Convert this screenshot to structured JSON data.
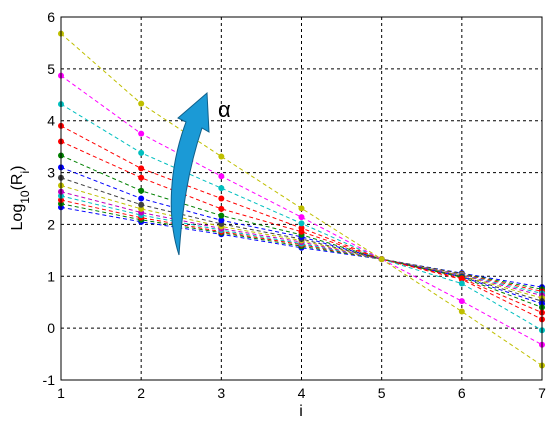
{
  "chart_data": {
    "type": "line",
    "title": "",
    "xlabel": "i",
    "ylabel": {
      "base": "Log",
      "sub1": "10",
      "open": "(R",
      "sub2": "i",
      "close": ")"
    },
    "xlim": [
      1,
      7
    ],
    "ylim": [
      -1,
      6
    ],
    "xticks": [
      "1",
      "2",
      "3",
      "4",
      "5",
      "6",
      "7"
    ],
    "yticks": [
      "-1",
      "0",
      "1",
      "2",
      "3",
      "4",
      "5",
      "6"
    ],
    "grid": true,
    "line_style": "dashed",
    "x": [
      1,
      2,
      3,
      4,
      5,
      6,
      7
    ],
    "series": [
      {
        "color": "#0000ff",
        "values": [
          2.33,
          2.05,
          1.81,
          1.55,
          1.33,
          1.06,
          0.79
        ]
      },
      {
        "color": "#008000",
        "values": [
          2.4,
          2.09,
          1.84,
          1.58,
          1.33,
          1.05,
          0.75
        ]
      },
      {
        "color": "#ff0000",
        "values": [
          2.47,
          2.13,
          1.86,
          1.61,
          1.33,
          1.04,
          0.71
        ]
      },
      {
        "color": "#00bfbf",
        "values": [
          2.55,
          2.18,
          1.89,
          1.63,
          1.33,
          1.03,
          0.67
        ]
      },
      {
        "color": "#bf00bf",
        "values": [
          2.63,
          2.23,
          1.92,
          1.66,
          1.33,
          1.02,
          0.63
        ]
      },
      {
        "color": "#bfbf00",
        "values": [
          2.75,
          2.3,
          1.96,
          1.69,
          1.33,
          1.01,
          0.58
        ]
      },
      {
        "color": "#404040",
        "values": [
          2.9,
          2.38,
          2.01,
          1.72,
          1.33,
          1.0,
          0.52
        ]
      },
      {
        "color": "#0000ff",
        "values": [
          3.1,
          2.5,
          2.08,
          1.76,
          1.33,
          0.99,
          0.47
        ]
      },
      {
        "color": "#008000",
        "values": [
          3.33,
          2.65,
          2.17,
          1.8,
          1.33,
          0.98,
          0.4
        ]
      },
      {
        "color": "#ff0000",
        "values": [
          3.6,
          2.9,
          2.3,
          1.86,
          1.33,
          0.96,
          0.3
        ]
      },
      {
        "color": "#ff0000",
        "values": [
          3.9,
          3.08,
          2.5,
          1.93,
          1.33,
          0.94,
          0.17
        ]
      },
      {
        "color": "#00bfbf",
        "values": [
          4.32,
          3.38,
          2.7,
          2.02,
          1.33,
          0.86,
          -0.04
        ]
      },
      {
        "color": "#ff00ff",
        "values": [
          4.87,
          3.75,
          2.93,
          2.14,
          1.33,
          0.52,
          -0.32
        ]
      },
      {
        "color": "#bfbf00",
        "values": [
          5.68,
          4.33,
          3.31,
          2.31,
          1.33,
          0.32,
          -0.72
        ]
      }
    ],
    "annotation": {
      "label": "α",
      "arrow_color": "#1b9ad6"
    }
  }
}
